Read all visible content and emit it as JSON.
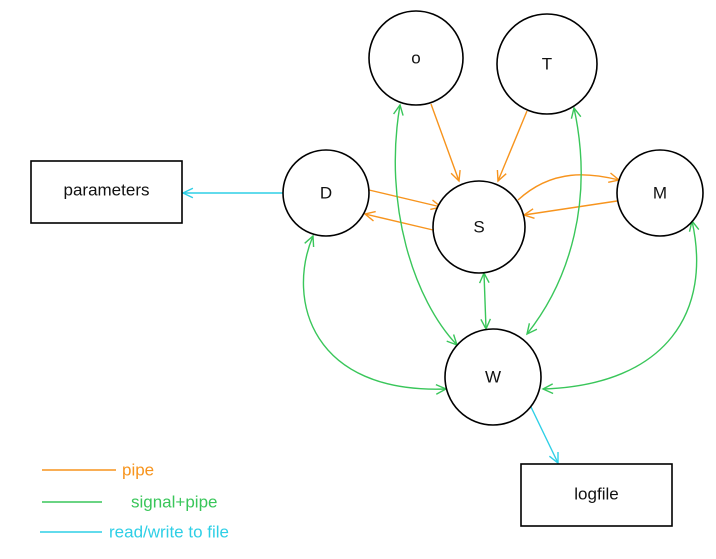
{
  "colors": {
    "pipe": "#f7941d",
    "signal_pipe": "#39c65a",
    "file": "#2ecfe6",
    "node_stroke": "#000000"
  },
  "nodes": {
    "o": "o",
    "T": "T",
    "D": "D",
    "S": "S",
    "M": "M",
    "W": "W"
  },
  "boxes": {
    "parameters": "parameters",
    "logfile": "logfile"
  },
  "legend": {
    "pipe": "pipe",
    "signal_pipe": "signal+pipe",
    "file": "read/write to file"
  },
  "edges": [
    {
      "from": "o",
      "to": "S",
      "type": "pipe",
      "direction": "to"
    },
    {
      "from": "T",
      "to": "S",
      "type": "pipe",
      "direction": "to"
    },
    {
      "from": "D",
      "to": "S",
      "type": "pipe",
      "direction": "to"
    },
    {
      "from": "S",
      "to": "D",
      "type": "pipe",
      "direction": "to"
    },
    {
      "from": "S",
      "to": "M",
      "type": "pipe",
      "direction": "to"
    },
    {
      "from": "M",
      "to": "S",
      "type": "pipe",
      "direction": "to"
    },
    {
      "from": "S",
      "to": "W",
      "type": "signal+pipe",
      "direction": "both"
    },
    {
      "from": "o",
      "to": "W",
      "type": "signal+pipe",
      "direction": "both"
    },
    {
      "from": "T",
      "to": "W",
      "type": "signal+pipe",
      "direction": "both"
    },
    {
      "from": "D",
      "to": "W",
      "type": "signal+pipe",
      "direction": "both"
    },
    {
      "from": "M",
      "to": "W",
      "type": "signal+pipe",
      "direction": "both"
    },
    {
      "from": "D",
      "to": "parameters",
      "type": "read/write to file",
      "direction": "to"
    },
    {
      "from": "W",
      "to": "logfile",
      "type": "read/write to file",
      "direction": "to"
    }
  ]
}
